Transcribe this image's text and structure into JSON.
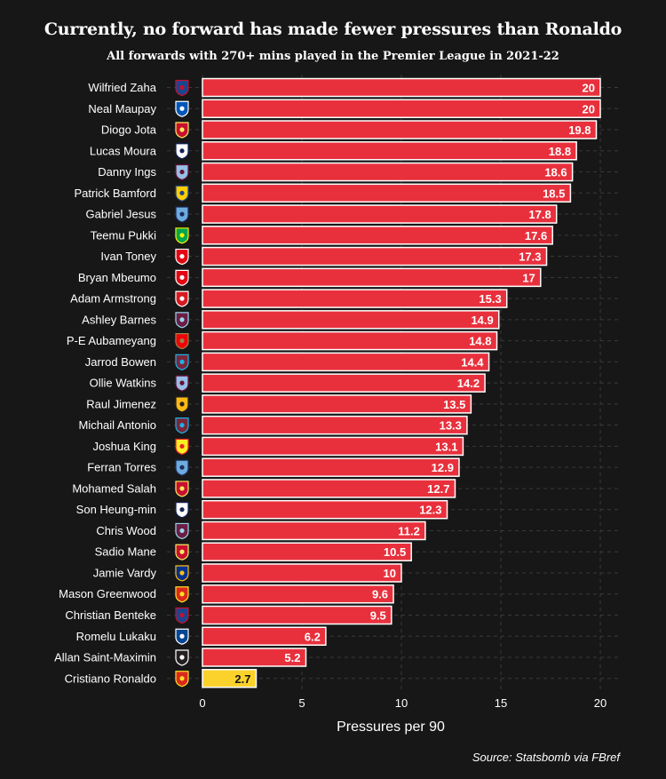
{
  "header": {
    "title": "Currently, no forward has made fewer pressures than Ronaldo",
    "subtitle": "All forwards with 270+ mins played in the Premier League in 2021-22"
  },
  "footer": {
    "source": "Source: Statsbomb via FBref"
  },
  "colors": {
    "background": "#171717",
    "bar": "#e8303c",
    "highlight": "#fbd22c",
    "text": "#ffffff",
    "grid": "#3a3a3a"
  },
  "chart_data": {
    "type": "bar",
    "orientation": "horizontal",
    "xlabel": "Pressures per 90",
    "xlim": [
      -2,
      21
    ],
    "xticks": [
      0,
      5,
      10,
      15,
      20
    ],
    "grid": true,
    "categories": [
      "Wilfried Zaha",
      "Neal Maupay",
      "Diogo Jota",
      "Lucas Moura",
      "Danny Ings",
      "Patrick Bamford",
      "Gabriel Jesus",
      "Teemu Pukki",
      "Ivan Toney",
      "Bryan Mbeumo",
      "Adam Armstrong",
      "Ashley Barnes",
      "P-E Aubameyang",
      "Jarrod Bowen",
      "Ollie Watkins",
      "Raul Jimenez",
      "Michail Antonio",
      "Joshua King",
      "Ferran Torres",
      "Mohamed Salah",
      "Son Heung-min",
      "Chris Wood",
      "Sadio Mane",
      "Jamie Vardy",
      "Mason Greenwood",
      "Christian Benteke",
      "Romelu Lukaku",
      "Allan Saint-Maximin",
      "Cristiano Ronaldo"
    ],
    "values": [
      20,
      20,
      19.8,
      18.8,
      18.6,
      18.5,
      17.8,
      17.6,
      17.3,
      17,
      15.3,
      14.9,
      14.8,
      14.4,
      14.2,
      13.5,
      13.3,
      13.1,
      12.9,
      12.7,
      12.3,
      11.2,
      10.5,
      10,
      9.6,
      9.5,
      6.2,
      5.2,
      2.7
    ],
    "value_labels": [
      "20",
      "20",
      "19.8",
      "18.8",
      "18.6",
      "18.5",
      "17.8",
      "17.6",
      "17.3",
      "17",
      "15.3",
      "14.9",
      "14.8",
      "14.4",
      "14.2",
      "13.5",
      "13.3",
      "13.1",
      "12.9",
      "12.7",
      "12.3",
      "11.2",
      "10.5",
      "10",
      "9.6",
      "9.5",
      "6.2",
      "5.2",
      "2.7"
    ],
    "highlight": "Cristiano Ronaldo",
    "club_badges": [
      {
        "club": "crystal-palace",
        "color": "#1b458f",
        "accent": "#c4122e"
      },
      {
        "club": "brighton",
        "color": "#0057b8",
        "accent": "#ffffff"
      },
      {
        "club": "liverpool",
        "color": "#c8102e",
        "accent": "#f6eb61"
      },
      {
        "club": "tottenham",
        "color": "#ffffff",
        "accent": "#132257"
      },
      {
        "club": "aston-villa",
        "color": "#95bfe5",
        "accent": "#670e36"
      },
      {
        "club": "leeds",
        "color": "#ffcd00",
        "accent": "#1d428a"
      },
      {
        "club": "manchester-city",
        "color": "#6cabdd",
        "accent": "#1c2c5b"
      },
      {
        "club": "norwich",
        "color": "#00a650",
        "accent": "#fff200"
      },
      {
        "club": "brentford",
        "color": "#e30613",
        "accent": "#ffffff"
      },
      {
        "club": "brentford",
        "color": "#e30613",
        "accent": "#ffffff"
      },
      {
        "club": "southampton",
        "color": "#d71920",
        "accent": "#ffffff"
      },
      {
        "club": "burnley",
        "color": "#6c1d45",
        "accent": "#99d6ea"
      },
      {
        "club": "arsenal",
        "color": "#ef0107",
        "accent": "#9c824a"
      },
      {
        "club": "west-ham",
        "color": "#7a263a",
        "accent": "#1bb1e7"
      },
      {
        "club": "aston-villa",
        "color": "#95bfe5",
        "accent": "#670e36"
      },
      {
        "club": "wolves",
        "color": "#fdb913",
        "accent": "#231f20"
      },
      {
        "club": "west-ham",
        "color": "#7a263a",
        "accent": "#1bb1e7"
      },
      {
        "club": "watford",
        "color": "#fbee23",
        "accent": "#ed2127"
      },
      {
        "club": "manchester-city",
        "color": "#6cabdd",
        "accent": "#1c2c5b"
      },
      {
        "club": "liverpool",
        "color": "#c8102e",
        "accent": "#f6eb61"
      },
      {
        "club": "tottenham",
        "color": "#ffffff",
        "accent": "#132257"
      },
      {
        "club": "burnley",
        "color": "#6c1d45",
        "accent": "#99d6ea"
      },
      {
        "club": "liverpool",
        "color": "#c8102e",
        "accent": "#f6eb61"
      },
      {
        "club": "leicester",
        "color": "#003090",
        "accent": "#fdbe11"
      },
      {
        "club": "manchester-united",
        "color": "#da291c",
        "accent": "#fbe122"
      },
      {
        "club": "crystal-palace",
        "color": "#1b458f",
        "accent": "#c4122e"
      },
      {
        "club": "chelsea",
        "color": "#034694",
        "accent": "#ffffff"
      },
      {
        "club": "newcastle",
        "color": "#241f20",
        "accent": "#ffffff"
      },
      {
        "club": "manchester-united",
        "color": "#da291c",
        "accent": "#fbe122"
      }
    ]
  }
}
